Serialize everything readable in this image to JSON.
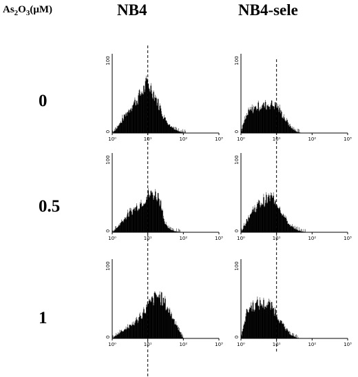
{
  "figure": {
    "treatment_label": {
      "prefix": "As",
      "sub1": "2",
      "mid": "O",
      "sub2": "3",
      "unit": "(μM)"
    },
    "columns": [
      "NB4",
      "NB4-sele"
    ],
    "rows": [
      "0",
      "0.5",
      "1"
    ]
  },
  "chart_data": {
    "type": "area",
    "description_axes": {
      "x_scale": "log",
      "x_tick_labels": [
        "10⁰",
        "10¹",
        "10²",
        "10³"
      ],
      "x_range": [
        1,
        1000
      ],
      "y_tick_labels": [
        "0",
        "100"
      ],
      "y_range": [
        0,
        100
      ],
      "reference_line_x": 10
    },
    "panels": [
      {
        "column": "NB4",
        "row": "0",
        "curve": [
          [
            1,
            0
          ],
          [
            1.3,
            5
          ],
          [
            1.8,
            14
          ],
          [
            2.5,
            24
          ],
          [
            3.5,
            33
          ],
          [
            5,
            42
          ],
          [
            7,
            52
          ],
          [
            10,
            62
          ],
          [
            14,
            52
          ],
          [
            20,
            36
          ],
          [
            28,
            20
          ],
          [
            40,
            10
          ],
          [
            60,
            4
          ],
          [
            90,
            1
          ],
          [
            130,
            0
          ]
        ]
      },
      {
        "column": "NB4-sele",
        "row": "0",
        "curve": [
          [
            1,
            0
          ],
          [
            1.2,
            12
          ],
          [
            1.6,
            25
          ],
          [
            2.2,
            30
          ],
          [
            3,
            33
          ],
          [
            4.5,
            34
          ],
          [
            7,
            36
          ],
          [
            10,
            34
          ],
          [
            13,
            26
          ],
          [
            18,
            16
          ],
          [
            25,
            7
          ],
          [
            35,
            2
          ],
          [
            50,
            0
          ]
        ]
      },
      {
        "column": "NB4",
        "row": "0.5",
        "curve": [
          [
            1,
            0
          ],
          [
            1.4,
            6
          ],
          [
            2,
            15
          ],
          [
            3,
            23
          ],
          [
            4.5,
            30
          ],
          [
            7,
            38
          ],
          [
            10,
            46
          ],
          [
            14,
            48
          ],
          [
            20,
            45
          ],
          [
            25,
            32
          ],
          [
            30,
            10
          ],
          [
            40,
            4
          ],
          [
            60,
            1
          ],
          [
            90,
            0
          ]
        ]
      },
      {
        "column": "NB4-sele",
        "row": "0.5",
        "curve": [
          [
            1,
            0
          ],
          [
            1.3,
            10
          ],
          [
            1.8,
            22
          ],
          [
            2.5,
            30
          ],
          [
            3.5,
            36
          ],
          [
            5,
            40
          ],
          [
            7,
            43
          ],
          [
            9,
            41
          ],
          [
            12,
            32
          ],
          [
            16,
            20
          ],
          [
            22,
            10
          ],
          [
            32,
            4
          ],
          [
            50,
            1
          ],
          [
            70,
            0
          ]
        ]
      },
      {
        "column": "NB4",
        "row": "1",
        "curve": [
          [
            1,
            0
          ],
          [
            1.5,
            6
          ],
          [
            2.2,
            11
          ],
          [
            3.2,
            15
          ],
          [
            4.5,
            20
          ],
          [
            7,
            30
          ],
          [
            10,
            40
          ],
          [
            14,
            48
          ],
          [
            18,
            53
          ],
          [
            24,
            50
          ],
          [
            32,
            42
          ],
          [
            45,
            30
          ],
          [
            60,
            20
          ],
          [
            75,
            10
          ],
          [
            90,
            3
          ],
          [
            100,
            0
          ]
        ]
      },
      {
        "column": "NB4-sele",
        "row": "1",
        "curve": [
          [
            1,
            0
          ],
          [
            1.2,
            18
          ],
          [
            1.5,
            34
          ],
          [
            2,
            40
          ],
          [
            2.8,
            42
          ],
          [
            4,
            43
          ],
          [
            5.5,
            42
          ],
          [
            7,
            40
          ],
          [
            9,
            34
          ],
          [
            12,
            24
          ],
          [
            17,
            12
          ],
          [
            25,
            5
          ],
          [
            35,
            1
          ],
          [
            45,
            0
          ]
        ]
      }
    ]
  }
}
